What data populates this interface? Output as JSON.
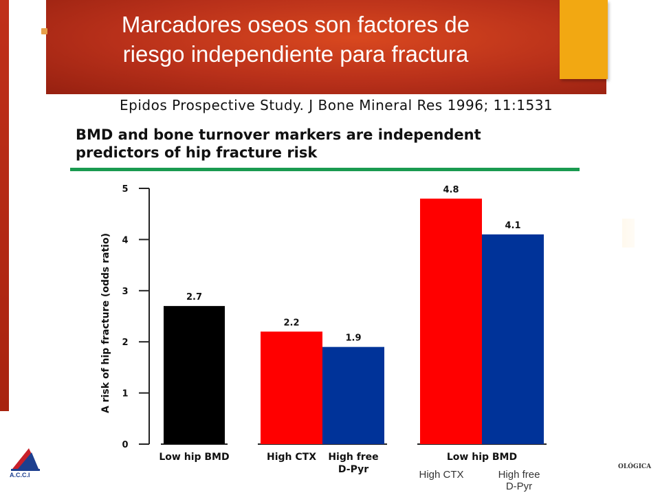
{
  "slide": {
    "title_lines": [
      "Marcadores oseos son factores de",
      "riesgo independiente para fractura"
    ],
    "citation": "Epidos Prospective Study. J Bone Mineral Res 1996; 11:1531",
    "logo_left_text": "A.C.C.I",
    "logo_right_text": "OLÓGICA",
    "colors": {
      "title_band": "#b8301a",
      "accent_square": "#f2a812",
      "green_rule": "#1a9a50"
    }
  },
  "chart_data": {
    "type": "bar",
    "title_lines": [
      "BMD and bone turnover markers are independent",
      "predictors of hip fracture risk"
    ],
    "ylabel": "A risk of hip fracture (odds ratio)",
    "xlabel": "",
    "ylim": [
      0,
      5
    ],
    "yticks": [
      "0",
      "1",
      "2",
      "3",
      "4",
      "5"
    ],
    "grid": false,
    "groups": [
      {
        "label_lines": [
          "Low hip BMD"
        ],
        "bars": [
          {
            "value": 2.7,
            "label": "2.7",
            "color": "#000000"
          }
        ]
      },
      {
        "label_lines": [],
        "bars": [
          {
            "value": 2.2,
            "label": "2.2",
            "color": "#ff0000",
            "category": [
              "High CTX"
            ]
          },
          {
            "value": 1.9,
            "label": "1.9",
            "color": "#003399",
            "category": [
              "High free",
              "D-Pyr"
            ]
          }
        ]
      },
      {
        "label_lines": [
          "Low hip BMD"
        ],
        "bars": [
          {
            "value": 4.8,
            "label": "4.8",
            "color": "#ff0000",
            "sublabel": [
              "High CTX"
            ]
          },
          {
            "value": 4.1,
            "label": "4.1",
            "color": "#003399",
            "sublabel": [
              "High free",
              "D-Pyr"
            ]
          }
        ]
      }
    ]
  }
}
